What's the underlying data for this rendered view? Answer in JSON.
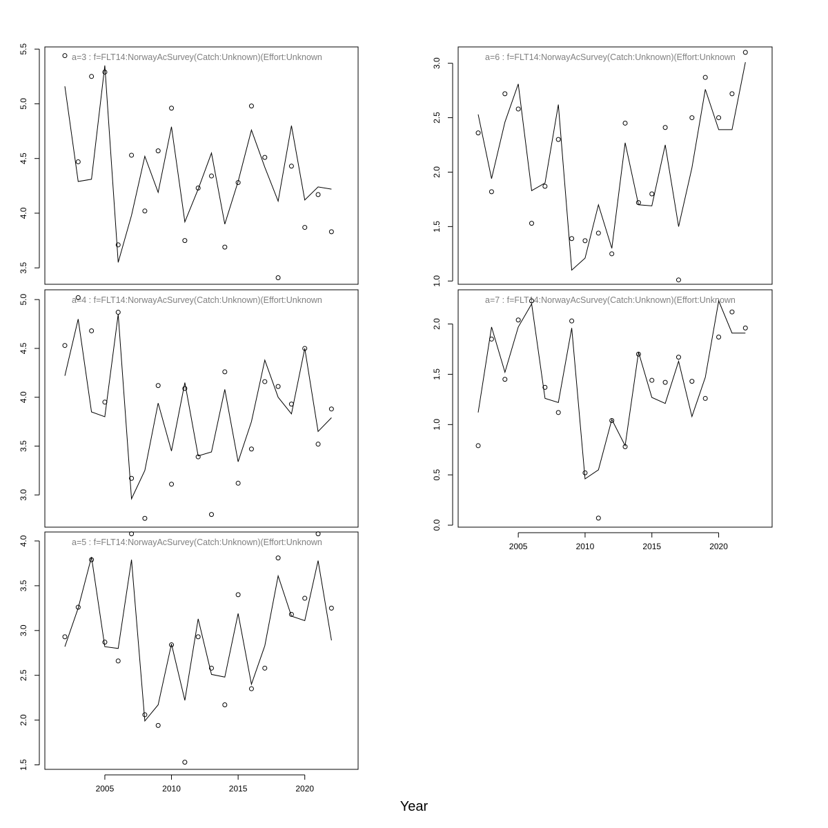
{
  "figure": {
    "xlabel": "Year"
  },
  "chart_data": [
    {
      "type": "line",
      "title": "a=3  :  f=FLT14:NorwayAcSurvey(Catch:Unknown)(Effort:Unknown",
      "xlim": [
        2000.5,
        2024
      ],
      "ylim": [
        3.35,
        5.52
      ],
      "yticks": [
        3.5,
        4.0,
        4.5,
        5.0,
        5.5
      ],
      "xticks": [],
      "years": [
        2002,
        2003,
        2004,
        2005,
        2006,
        2007,
        2008,
        2009,
        2010,
        2011,
        2012,
        2013,
        2014,
        2015,
        2016,
        2017,
        2018,
        2019,
        2020,
        2021,
        2022
      ],
      "series": [
        {
          "kind": "line",
          "values": [
            5.16,
            4.29,
            4.31,
            5.35,
            3.55,
            3.98,
            4.52,
            4.19,
            4.79,
            3.92,
            4.22,
            4.55,
            3.9,
            4.29,
            4.76,
            4.42,
            4.11,
            4.8,
            4.12,
            4.24,
            4.22
          ]
        },
        {
          "kind": "points",
          "values": [
            5.44,
            4.47,
            5.25,
            5.29,
            3.71,
            4.53,
            4.02,
            4.57,
            4.96,
            3.75,
            4.23,
            4.34,
            3.69,
            4.28,
            4.98,
            4.51,
            3.41,
            4.43,
            3.87,
            4.17,
            3.83
          ]
        }
      ]
    },
    {
      "type": "line",
      "title": "a=4  :  f=FLT14:NorwayAcSurvey(Catch:Unknown)(Effort:Unknown",
      "xlim": [
        2000.5,
        2024
      ],
      "ylim": [
        2.67,
        5.1
      ],
      "yticks": [
        3.0,
        3.5,
        4.0,
        4.5,
        5.0
      ],
      "xticks": [],
      "years": [
        2002,
        2003,
        2004,
        2005,
        2006,
        2007,
        2008,
        2009,
        2010,
        2011,
        2012,
        2013,
        2014,
        2015,
        2016,
        2017,
        2018,
        2019,
        2020,
        2021,
        2022
      ],
      "series": [
        {
          "kind": "line",
          "values": [
            4.22,
            4.8,
            3.85,
            3.8,
            4.85,
            2.96,
            3.25,
            3.94,
            3.45,
            4.15,
            3.4,
            3.44,
            4.08,
            3.34,
            3.75,
            4.38,
            4.0,
            3.83,
            4.5,
            3.65,
            3.79
          ]
        },
        {
          "kind": "points",
          "values": [
            4.53,
            5.02,
            4.68,
            3.95,
            4.87,
            3.17,
            2.76,
            4.12,
            3.11,
            4.09,
            3.39,
            2.8,
            4.26,
            3.12,
            3.47,
            4.16,
            4.11,
            3.93,
            4.5,
            3.52,
            3.88
          ]
        }
      ]
    },
    {
      "type": "line",
      "title": "a=5  :  f=FLT14:NorwayAcSurvey(Catch:Unknown)(Effort:Unknown",
      "xlim": [
        2000.5,
        2024
      ],
      "ylim": [
        1.45,
        4.1
      ],
      "yticks": [
        1.5,
        2.0,
        2.5,
        3.0,
        3.5,
        4.0
      ],
      "xticks": [
        2005,
        2010,
        2015,
        2020
      ],
      "years": [
        2002,
        2003,
        2004,
        2005,
        2006,
        2007,
        2008,
        2009,
        2010,
        2011,
        2012,
        2013,
        2014,
        2015,
        2016,
        2017,
        2018,
        2019,
        2020,
        2021,
        2022
      ],
      "series": [
        {
          "kind": "line",
          "values": [
            2.82,
            3.25,
            3.82,
            2.82,
            2.8,
            3.79,
            1.99,
            2.17,
            2.85,
            2.22,
            3.13,
            2.51,
            2.48,
            3.19,
            2.4,
            2.83,
            3.61,
            3.16,
            3.11,
            3.78,
            2.89
          ]
        },
        {
          "kind": "points",
          "values": [
            2.93,
            3.26,
            3.79,
            2.87,
            2.66,
            4.08,
            2.06,
            1.94,
            2.84,
            1.53,
            2.93,
            2.58,
            2.17,
            3.4,
            2.35,
            2.58,
            3.81,
            3.18,
            3.36,
            4.08,
            3.25
          ]
        }
      ]
    },
    {
      "type": "line",
      "title": "a=6  :  f=FLT14:NorwayAcSurvey(Catch:Unknown)(Effort:Unknown",
      "xlim": [
        2000.5,
        2024
      ],
      "ylim": [
        0.97,
        3.15
      ],
      "yticks": [
        1.0,
        1.5,
        2.0,
        2.5,
        3.0
      ],
      "xticks": [],
      "years": [
        2002,
        2003,
        2004,
        2005,
        2006,
        2007,
        2008,
        2009,
        2010,
        2011,
        2012,
        2013,
        2014,
        2015,
        2016,
        2017,
        2018,
        2019,
        2020,
        2021,
        2022
      ],
      "series": [
        {
          "kind": "line",
          "values": [
            2.53,
            1.94,
            2.46,
            2.81,
            1.83,
            1.9,
            2.62,
            1.1,
            1.21,
            1.7,
            1.3,
            2.27,
            1.7,
            1.69,
            2.25,
            1.5,
            2.04,
            2.76,
            2.39,
            2.39,
            3.01
          ]
        },
        {
          "kind": "points",
          "values": [
            2.36,
            1.82,
            2.72,
            2.58,
            1.53,
            1.87,
            2.3,
            1.39,
            1.37,
            1.44,
            1.25,
            2.45,
            1.72,
            1.8,
            2.41,
            1.01,
            2.5,
            2.87,
            2.5,
            2.72,
            3.1
          ]
        }
      ]
    },
    {
      "type": "line",
      "title": "a=7  :  f=FLT14:NorwayAcSurvey(Catch:Unknown)(Effort:Unknown",
      "xlim": [
        2000.5,
        2024
      ],
      "ylim": [
        -0.02,
        2.34
      ],
      "yticks": [
        0.0,
        0.5,
        1.0,
        1.5,
        2.0
      ],
      "xticks": [
        2005,
        2010,
        2015,
        2020
      ],
      "years": [
        2002,
        2003,
        2004,
        2005,
        2006,
        2007,
        2008,
        2009,
        2010,
        2011,
        2012,
        2013,
        2014,
        2015,
        2016,
        2017,
        2018,
        2019,
        2020,
        2021,
        2022
      ],
      "series": [
        {
          "kind": "line",
          "values": [
            1.12,
            1.97,
            1.52,
            1.97,
            2.2,
            1.26,
            1.22,
            1.96,
            0.46,
            0.55,
            1.05,
            0.79,
            1.72,
            1.27,
            1.21,
            1.63,
            1.08,
            1.47,
            2.23,
            1.91,
            1.91
          ]
        },
        {
          "kind": "points",
          "values": [
            0.79,
            1.85,
            1.45,
            2.04,
            2.23,
            1.37,
            1.12,
            2.03,
            0.52,
            0.07,
            1.04,
            0.78,
            1.7,
            1.44,
            1.42,
            1.67,
            1.43,
            1.26,
            1.87,
            2.12,
            1.96
          ]
        }
      ]
    }
  ]
}
